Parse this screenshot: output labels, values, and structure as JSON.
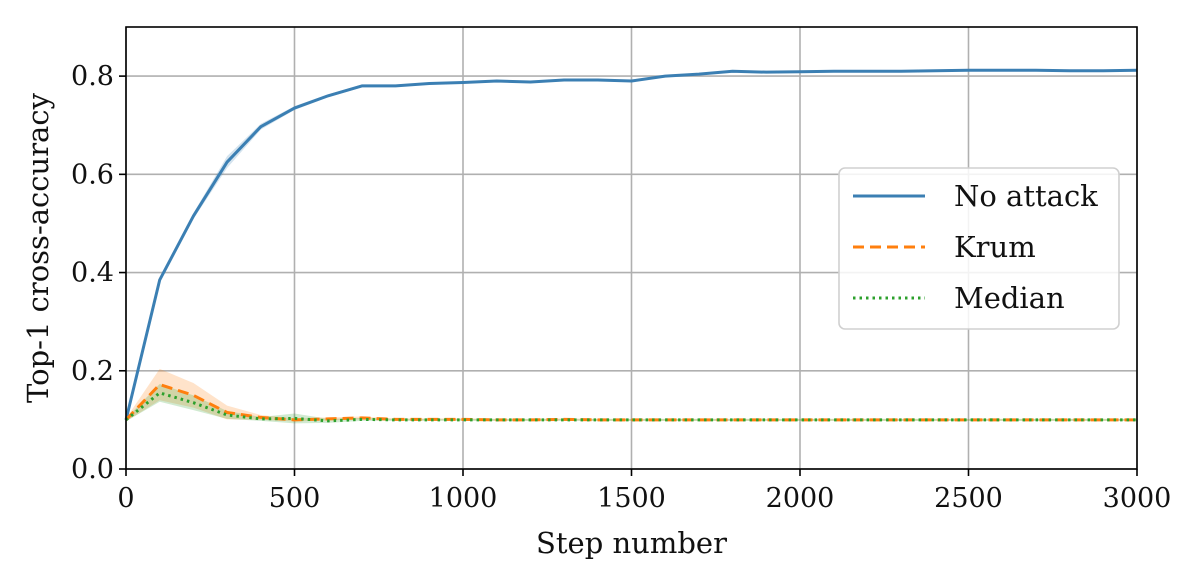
{
  "chart_data": {
    "type": "line",
    "title": "",
    "xlabel": "Step number",
    "ylabel": "Top-1 cross-accuracy",
    "xlim": [
      0,
      3000
    ],
    "ylim": [
      0,
      0.9
    ],
    "xticks": [
      0,
      500,
      1000,
      1500,
      2000,
      2500,
      3000
    ],
    "xtick_labels": [
      "0",
      "500",
      "1000",
      "1500",
      "2000",
      "2500",
      "3000"
    ],
    "yticks": [
      0.0,
      0.2,
      0.4,
      0.6,
      0.8
    ],
    "ytick_labels": [
      "0.0",
      "0.2",
      "0.4",
      "0.6",
      "0.8"
    ],
    "grid": true,
    "legend_position": "right",
    "x": [
      0,
      100,
      200,
      300,
      400,
      500,
      600,
      700,
      800,
      900,
      1000,
      1100,
      1200,
      1300,
      1400,
      1500,
      1600,
      1700,
      1800,
      1900,
      2000,
      2100,
      2200,
      2300,
      2400,
      2500,
      2600,
      2700,
      2800,
      2900,
      3000
    ],
    "series": [
      {
        "name": "No attack",
        "color": "#3b7fb3",
        "style": "solid",
        "values": [
          0.1,
          0.385,
          0.515,
          0.625,
          0.697,
          0.735,
          0.76,
          0.78,
          0.78,
          0.785,
          0.787,
          0.79,
          0.788,
          0.792,
          0.792,
          0.79,
          0.8,
          0.804,
          0.81,
          0.808,
          0.809,
          0.81,
          0.81,
          0.81,
          0.811,
          0.812,
          0.812,
          0.812,
          0.811,
          0.811,
          0.812
        ],
        "band_halfwidth": [
          0.002,
          0.004,
          0.006,
          0.012,
          0.006,
          0.004,
          0.003,
          0.003,
          0.002,
          0.002,
          0.002,
          0.002,
          0.002,
          0.002,
          0.002,
          0.002,
          0.002,
          0.002,
          0.002,
          0.002,
          0.002,
          0.002,
          0.002,
          0.002,
          0.002,
          0.002,
          0.002,
          0.002,
          0.002,
          0.002,
          0.002
        ]
      },
      {
        "name": "Krum",
        "color": "#ff7f0e",
        "style": "dashed",
        "values": [
          0.1,
          0.172,
          0.15,
          0.115,
          0.105,
          0.1,
          0.102,
          0.104,
          0.101,
          0.101,
          0.101,
          0.1,
          0.1,
          0.101,
          0.1,
          0.1,
          0.1,
          0.1,
          0.1,
          0.1,
          0.1,
          0.1,
          0.1,
          0.1,
          0.1,
          0.1,
          0.1,
          0.1,
          0.1,
          0.1,
          0.1
        ],
        "band_halfwidth": [
          0.003,
          0.032,
          0.025,
          0.014,
          0.005,
          0.003,
          0.003,
          0.003,
          0.002,
          0.002,
          0.002,
          0.002,
          0.002,
          0.002,
          0.002,
          0.002,
          0.002,
          0.002,
          0.002,
          0.002,
          0.002,
          0.002,
          0.002,
          0.002,
          0.002,
          0.002,
          0.002,
          0.002,
          0.002,
          0.002,
          0.002
        ]
      },
      {
        "name": "Median",
        "color": "#2ca02c",
        "style": "dotted",
        "values": [
          0.1,
          0.155,
          0.135,
          0.11,
          0.102,
          0.103,
          0.098,
          0.101,
          0.1,
          0.1,
          0.1,
          0.1,
          0.1,
          0.1,
          0.1,
          0.1,
          0.1,
          0.1,
          0.1,
          0.1,
          0.1,
          0.1,
          0.1,
          0.1,
          0.1,
          0.1,
          0.1,
          0.1,
          0.1,
          0.1,
          0.1
        ],
        "band_halfwidth": [
          0.003,
          0.018,
          0.015,
          0.008,
          0.004,
          0.01,
          0.004,
          0.003,
          0.002,
          0.002,
          0.002,
          0.002,
          0.002,
          0.002,
          0.002,
          0.002,
          0.002,
          0.002,
          0.002,
          0.002,
          0.002,
          0.002,
          0.002,
          0.002,
          0.002,
          0.002,
          0.002,
          0.002,
          0.002,
          0.002,
          0.002
        ]
      }
    ]
  }
}
